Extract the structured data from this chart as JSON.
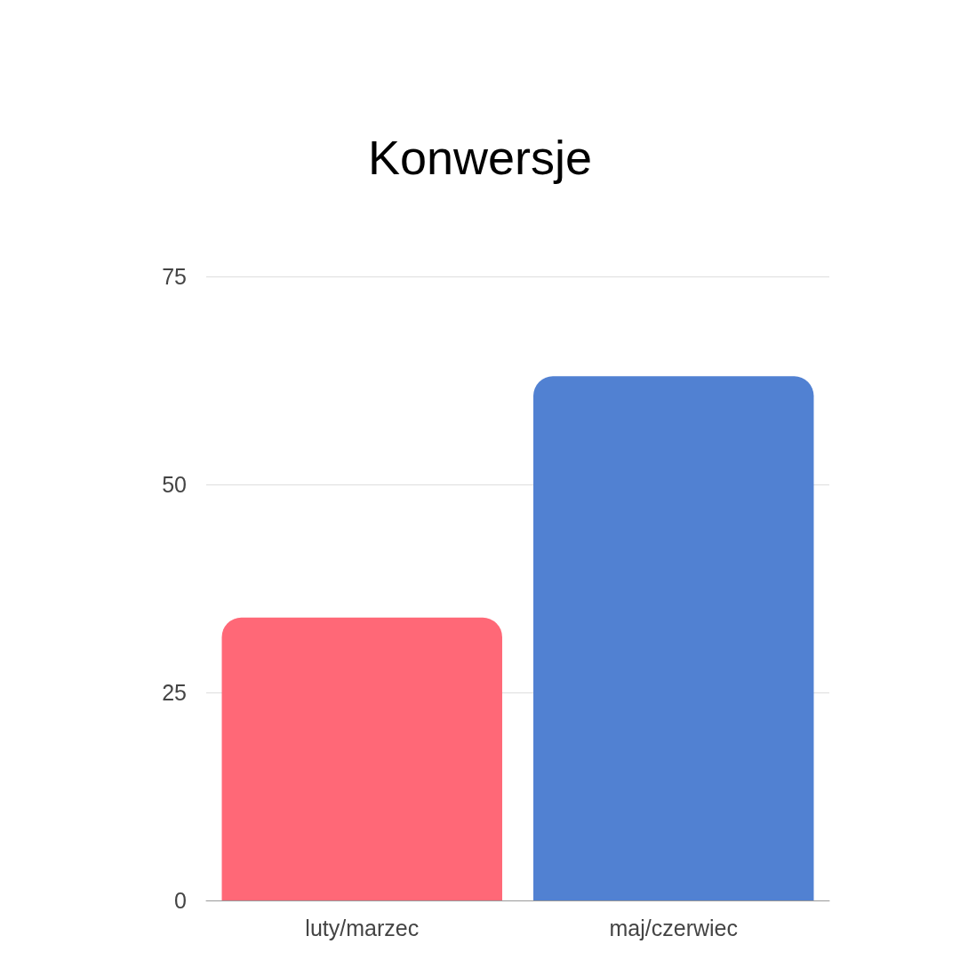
{
  "chart_data": {
    "type": "bar",
    "title": "Konwersje",
    "categories": [
      "luty/marzec",
      "maj/czerwiec"
    ],
    "values": [
      34,
      63
    ],
    "colors": [
      "#ff6877",
      "#5181d2"
    ],
    "ylim": [
      0,
      75
    ],
    "yticks": [
      0,
      25,
      50,
      75
    ],
    "grid": "y"
  }
}
